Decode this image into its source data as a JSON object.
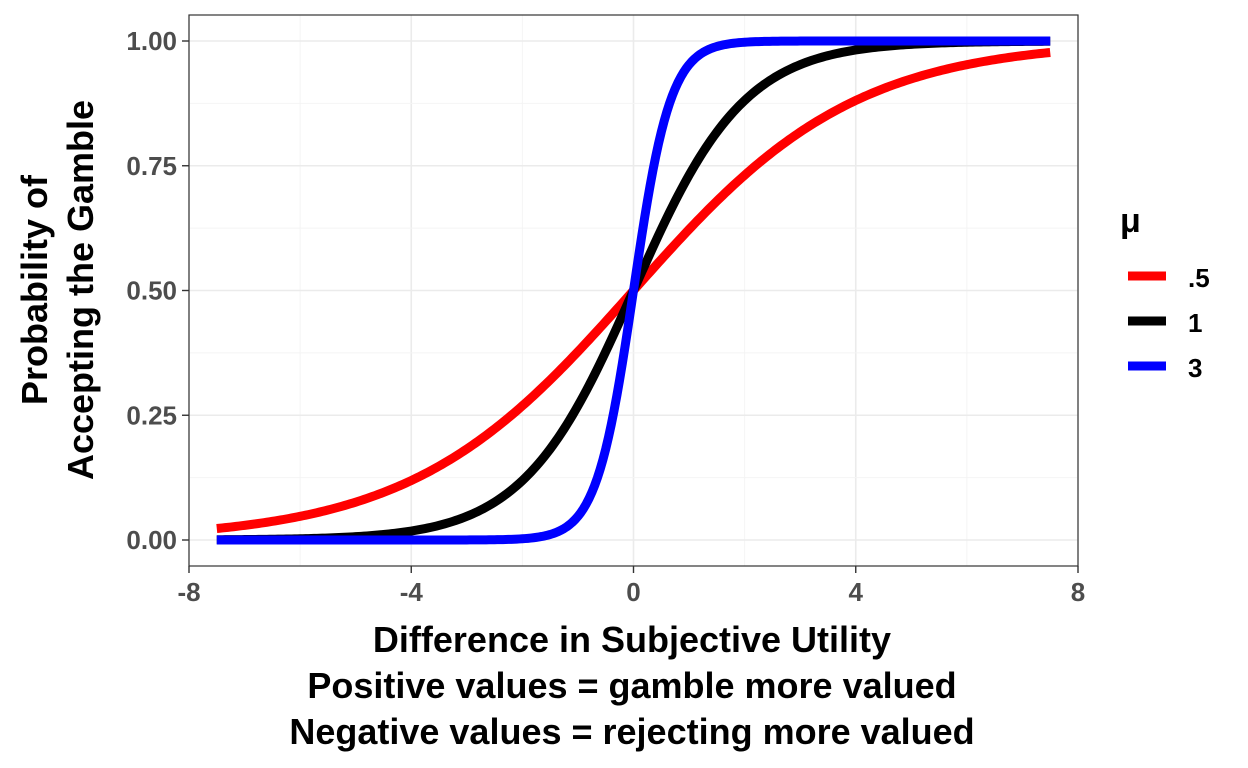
{
  "chart_data": {
    "type": "line",
    "xlabel_lines": [
      "Difference in Subjective Utility",
      "Positive values = gamble more valued",
      "Negative values = rejecting more valued"
    ],
    "ylabel_lines": [
      "Probability of",
      "Accepting the Gamble"
    ],
    "xlim": [
      -8,
      8
    ],
    "ylim": [
      0,
      1
    ],
    "x_ticks": [
      -8,
      -4,
      0,
      4,
      8
    ],
    "x_tick_labels": [
      "-8",
      "-4",
      "0",
      "4",
      "8"
    ],
    "y_ticks": [
      0,
      0.25,
      0.5,
      0.75,
      1
    ],
    "y_tick_labels": [
      "0.00",
      "0.25",
      "0.50",
      "0.75",
      "1.00"
    ],
    "grid": true,
    "legend": {
      "title": "μ",
      "position": "right"
    },
    "x_domain": [
      -7.5,
      7.5
    ],
    "series": [
      {
        "name": ".5",
        "mu": 0.5,
        "color": "#ff0000",
        "x": [
          -7.5,
          -6,
          -5,
          -4,
          -3,
          -2,
          -1,
          0,
          1,
          2,
          3,
          4,
          5,
          6,
          7.5
        ],
        "y": [
          0.023,
          0.047,
          0.076,
          0.119,
          0.182,
          0.269,
          0.378,
          0.5,
          0.622,
          0.731,
          0.818,
          0.881,
          0.924,
          0.953,
          0.977
        ]
      },
      {
        "name": "1",
        "mu": 1,
        "color": "#000000",
        "x": [
          -7.5,
          -6,
          -5,
          -4,
          -3,
          -2,
          -1,
          0,
          1,
          2,
          3,
          4,
          5,
          6,
          7.5
        ],
        "y": [
          0.001,
          0.002,
          0.007,
          0.018,
          0.047,
          0.119,
          0.269,
          0.5,
          0.731,
          0.881,
          0.953,
          0.982,
          0.993,
          0.998,
          0.999
        ]
      },
      {
        "name": "3",
        "mu": 3,
        "color": "#0000ff",
        "x": [
          -7.5,
          -3,
          -2,
          -1.5,
          -1,
          -0.5,
          0,
          0.5,
          1,
          1.5,
          2,
          3,
          7.5
        ],
        "y": [
          0.0,
          0.0001,
          0.002,
          0.011,
          0.047,
          0.182,
          0.5,
          0.818,
          0.953,
          0.989,
          0.998,
          1.0,
          1.0
        ]
      }
    ]
  }
}
